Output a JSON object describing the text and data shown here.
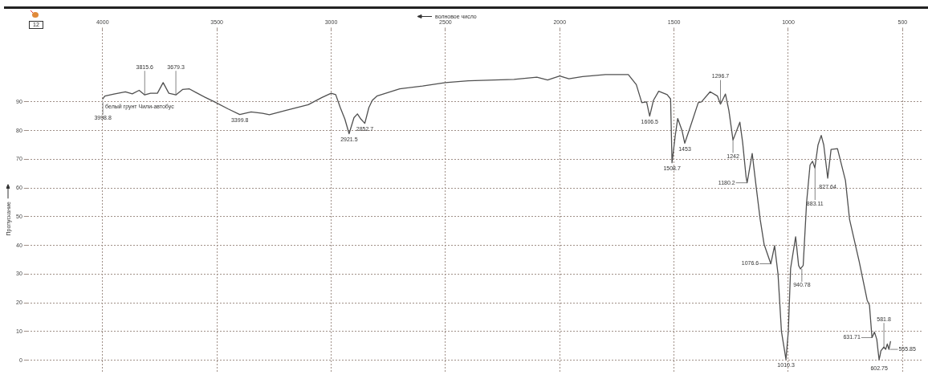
{
  "chart_data": {
    "type": "line",
    "xlabel": "волновое число",
    "ylabel": "Пропускание",
    "xlim": [
      4330,
      410
    ],
    "ylim": [
      -4,
      115
    ],
    "xticks": [
      4000,
      3500,
      3000,
      2500,
      2000,
      1500,
      1000,
      500
    ],
    "yticks": [
      0,
      10,
      20,
      30,
      40,
      50,
      60,
      70,
      80,
      90
    ],
    "grid": true,
    "legend": false,
    "marker": "none",
    "line_style": "solid",
    "series": [
      {
        "color": "#505050",
        "x": [
          3999,
          3990,
          3950,
          3900,
          3870,
          3840,
          3815.6,
          3790,
          3760,
          3735,
          3710,
          3679.3,
          3650,
          3620,
          3590,
          3550,
          3510,
          3450,
          3399.8,
          3350,
          3300,
          3270,
          3200,
          3100,
          3040,
          3000,
          2980,
          2960,
          2940,
          2921.5,
          2900,
          2885,
          2870,
          2852.7,
          2835,
          2820,
          2800,
          2700,
          2600,
          2500,
          2400,
          2200,
          2100,
          2053,
          2000,
          1960,
          1900,
          1800,
          1700,
          1665,
          1641,
          1620,
          1606.5,
          1590,
          1567,
          1530,
          1515,
          1508.7,
          1495,
          1484,
          1465,
          1453,
          1430,
          1394,
          1380,
          1342,
          1310,
          1296.7,
          1275,
          1260,
          1242,
          1212,
          1200,
          1185,
          1180.2,
          1158,
          1140,
          1123,
          1106,
          1076.6,
          1060,
          1045,
          1030,
          1010.3,
          1000,
          990,
          968,
          955,
          947,
          935,
          920,
          905,
          894,
          884,
          870,
          856,
          845,
          827.64,
          813,
          785,
          750,
          732,
          690,
          655,
          645,
          634,
          623,
          613,
          607,
          602.75,
          598,
          595,
          581.8,
          574,
          567,
          560,
          553
        ],
        "values": [
          91,
          92,
          92.7,
          93.5,
          92.8,
          94,
          92.4,
          93,
          93,
          96.7,
          93,
          92.4,
          94.3,
          94.5,
          93.2,
          91.5,
          90,
          87.5,
          85.6,
          86.5,
          86,
          85.5,
          87,
          89,
          91.5,
          93,
          92.5,
          88,
          84,
          78.9,
          84.5,
          85.8,
          84,
          82.5,
          88,
          90.5,
          92,
          94.5,
          95.5,
          96.7,
          97.3,
          97.8,
          98.6,
          97.6,
          99,
          98,
          98.8,
          99.5,
          99.5,
          96,
          89.7,
          90,
          85,
          90.5,
          93.7,
          92.5,
          91,
          68.8,
          78,
          84.2,
          80,
          75.6,
          81,
          89.7,
          90,
          93.5,
          92,
          89.2,
          92.7,
          87,
          76.7,
          82.9,
          76,
          64,
          61.8,
          72,
          60,
          49,
          40.4,
          33.6,
          39.9,
          30,
          10,
          0.3,
          10,
          32,
          43,
          33,
          31.8,
          33,
          55,
          68,
          69.3,
          67,
          75,
          78.3,
          75,
          63.4,
          73.4,
          73.7,
          62.6,
          49,
          34.4,
          20.9,
          19.2,
          7.9,
          9.8,
          7.3,
          3,
          0.2,
          2,
          3.3,
          4.6,
          3.8,
          5.7,
          3.8,
          6.5
        ]
      }
    ],
    "annotations": [
      "белый грунт Чили-автобус",
      "12",
      {
        "text": "3998.8",
        "x": 3998.8,
        "y": 90
      },
      {
        "text": "3815.6",
        "x": 3815.6,
        "y": 92.4
      },
      {
        "text": "3679.3",
        "x": 3679.3,
        "y": 92.4
      },
      {
        "text": "3399.8",
        "x": 3399.8,
        "y": 85.6
      },
      {
        "text": "2921.5",
        "x": 2921.5,
        "y": 78.9
      },
      {
        "text": "2852.7",
        "x": 2852.7,
        "y": 82.5
      },
      {
        "text": "1606.5",
        "x": 1606.5,
        "y": 85
      },
      {
        "text": "1508.7",
        "x": 1508.7,
        "y": 68.8
      },
      {
        "text": "1453",
        "x": 1453,
        "y": 75.6
      },
      {
        "text": "1296.7",
        "x": 1296.7,
        "y": 89.2
      },
      {
        "text": "1242",
        "x": 1242,
        "y": 76.7
      },
      {
        "text": "1180.2",
        "x": 1180.2,
        "y": 61.8
      },
      {
        "text": "1076.6",
        "x": 1076.6,
        "y": 33.6
      },
      {
        "text": "1010.3",
        "x": 1010.3,
        "y": 0.3
      },
      {
        "text": "940.78",
        "x": 940.78,
        "y": 31.8
      },
      {
        "text": "883.11",
        "x": 883.11,
        "y": 67
      },
      {
        "text": "827.64",
        "x": 827.64,
        "y": 63.4
      },
      {
        "text": "631.71",
        "x": 631.71,
        "y": 7.9
      },
      {
        "text": "602.75",
        "x": 602.75,
        "y": 0.2
      },
      {
        "text": "581.8",
        "x": 581.8,
        "y": 4.6
      },
      {
        "text": "555.85",
        "x": 555.85,
        "y": 3.8
      }
    ]
  }
}
